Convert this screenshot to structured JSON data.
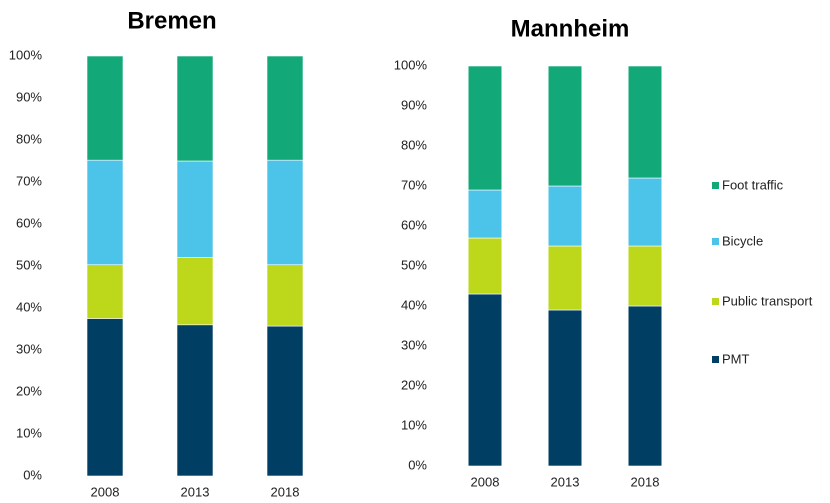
{
  "chart_data": [
    {
      "type": "stacked_bar",
      "title": "Bremen",
      "categories": [
        "2008",
        "2013",
        "2018"
      ],
      "series": [
        {
          "name": "PMT",
          "color": "#003f63",
          "values": [
            37.5,
            36,
            35.7
          ]
        },
        {
          "name": "Public transport",
          "color": "#bdd71b",
          "values": [
            12.8,
            16,
            14.6
          ]
        },
        {
          "name": "Bicycle",
          "color": "#4cc3e8",
          "values": [
            24.9,
            23,
            24.9
          ]
        },
        {
          "name": "Foot traffic",
          "color": "#12a878",
          "values": [
            24.8,
            25,
            24.8
          ]
        }
      ],
      "ylim": [
        0,
        100
      ],
      "yticks": [
        {
          "value": 0,
          "label": "0%"
        },
        {
          "value": 10,
          "label": "10%"
        },
        {
          "value": 20,
          "label": "20%"
        },
        {
          "value": 30,
          "label": "30%"
        },
        {
          "value": 40,
          "label": "40%"
        },
        {
          "value": 50,
          "label": "50%"
        },
        {
          "value": 60,
          "label": "60%"
        },
        {
          "value": 70,
          "label": "70%"
        },
        {
          "value": 80,
          "label": "80%"
        },
        {
          "value": 90,
          "label": "90%"
        },
        {
          "value": 100,
          "label": "100%"
        }
      ]
    },
    {
      "type": "stacked_bar",
      "title": "Mannheim",
      "categories": [
        "2008",
        "2013",
        "2018"
      ],
      "series": [
        {
          "name": "PMT",
          "color": "#003f63",
          "values": [
            43,
            39,
            40
          ]
        },
        {
          "name": "Public transport",
          "color": "#bdd71b",
          "values": [
            14,
            16,
            15
          ]
        },
        {
          "name": "Bicycle",
          "color": "#4cc3e8",
          "values": [
            12,
            15,
            17
          ]
        },
        {
          "name": "Foot traffic",
          "color": "#12a878",
          "values": [
            31,
            30,
            28
          ]
        }
      ],
      "ylim": [
        0,
        100
      ],
      "yticks": [
        {
          "value": 0,
          "label": "0%"
        },
        {
          "value": 10,
          "label": "10%"
        },
        {
          "value": 20,
          "label": "20%"
        },
        {
          "value": 30,
          "label": "30%"
        },
        {
          "value": 40,
          "label": "40%"
        },
        {
          "value": 50,
          "label": "50%"
        },
        {
          "value": 60,
          "label": "60%"
        },
        {
          "value": 70,
          "label": "70%"
        },
        {
          "value": 80,
          "label": "80%"
        },
        {
          "value": 90,
          "label": "90%"
        },
        {
          "value": 100,
          "label": "100%"
        }
      ],
      "legend": "right"
    }
  ]
}
